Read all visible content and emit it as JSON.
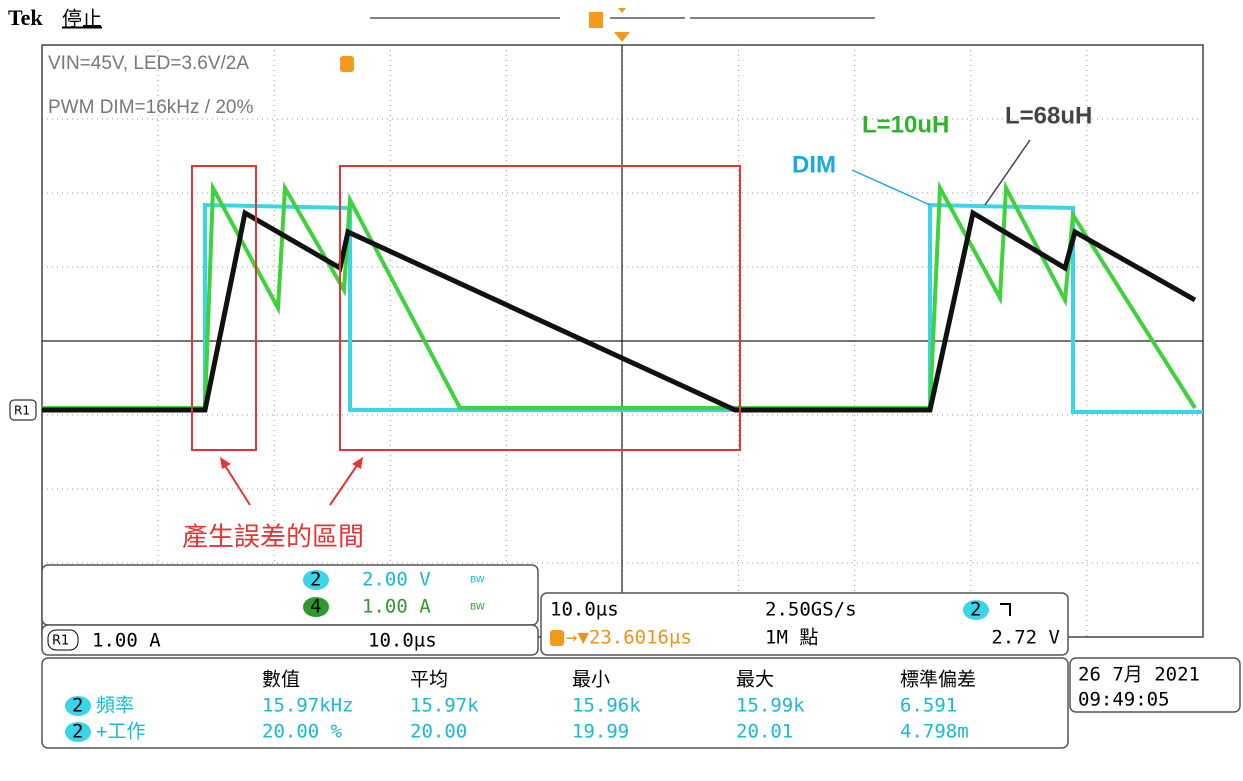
{
  "header": {
    "brand": "Tek",
    "status": "停止"
  },
  "annotations": {
    "conditions": "VIN=45V, LED=3.6V/2A",
    "pwm": "PWM DIM=16kHz / 20%",
    "l10": "L=10uH",
    "l68": "L=68uH",
    "dim": "DIM",
    "error_region": "產生誤差的區間",
    "ref_marker": "R1"
  },
  "channels": {
    "ch2": {
      "number": "2",
      "scale": "2.00 V",
      "bw": "BW"
    },
    "ch4": {
      "number": "4",
      "scale": "1.00 A",
      "bw": "BW"
    },
    "ref": {
      "label": "R1",
      "scale": "1.00 A",
      "time": "10.0µs"
    }
  },
  "timebase": {
    "time": "10.0µs",
    "rate": "2.50GS/s",
    "trigger_channel": "2",
    "trigger_level": "2.72 V",
    "position": "→▼23.6016µs",
    "record": "1M 點"
  },
  "measurements": {
    "header": [
      "數值",
      "平均",
      "最小",
      "最大",
      "標準偏差"
    ],
    "rows": [
      {
        "channel": "2",
        "name": "頻率",
        "cells": [
          "15.97kHz",
          "15.97k",
          "15.96k",
          "15.99k",
          "6.591"
        ]
      },
      {
        "channel": "2",
        "name": "+工作",
        "cells": [
          "20.00 %",
          "20.00",
          "19.99",
          "20.01",
          "4.798m"
        ]
      }
    ]
  },
  "datetime": {
    "date": "26 7月 2021",
    "time": "09:49:05"
  }
}
